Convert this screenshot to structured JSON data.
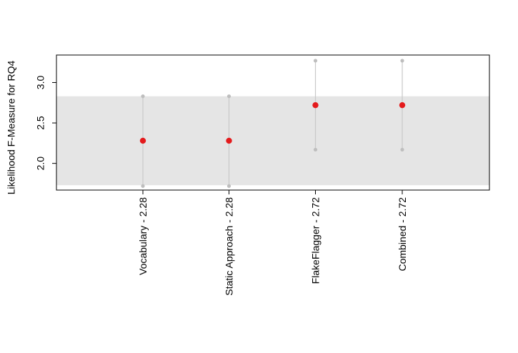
{
  "chart_data": {
    "type": "scatter",
    "title": "",
    "xlabel": "",
    "ylabel": "Likelihood F-Measure for RQ4",
    "categories": [
      "Vocabulary - 2.28",
      "Static Approach - 2.28",
      "FlakeFlagger - 2.72",
      "Combined - 2.72"
    ],
    "values": [
      2.28,
      2.28,
      2.72,
      2.72
    ],
    "lower": [
      1.72,
      1.72,
      2.17,
      2.17
    ],
    "upper": [
      2.83,
      2.83,
      3.27,
      3.27
    ],
    "band": [
      1.73,
      2.83
    ],
    "yticks": [
      2.0,
      2.5,
      3.0
    ],
    "ytick_labels": [
      "2.0",
      "2.5",
      "3.0"
    ],
    "ylim": [
      1.67,
      3.34
    ],
    "grid": false,
    "colors": {
      "point": "#e41a1c",
      "whisker": "#c8c8c8",
      "endpoint": "#bebebe",
      "band": "#e5e5e5"
    }
  }
}
